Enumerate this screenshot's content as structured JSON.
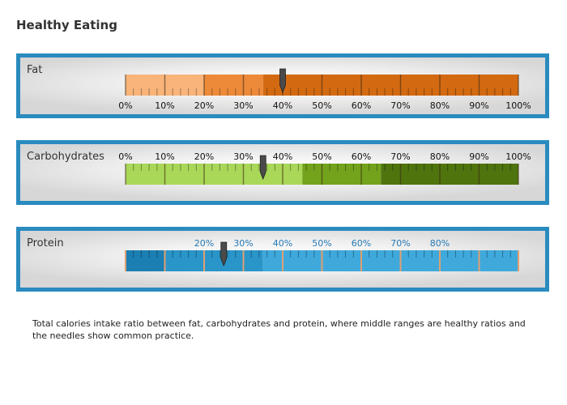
{
  "title": "Healthy Eating",
  "description": "Total calories intake ratio between fat, carbohydrates and protein, where middle ranges are healthy ratios and the needles show common practice.",
  "gauges": [
    {
      "id": "fat",
      "label": "Fat",
      "scale_position": "bottom",
      "ticks": [
        "0%",
        "10%",
        "20%",
        "30%",
        "40%",
        "50%",
        "60%",
        "70%",
        "80%",
        "90%",
        "100%"
      ],
      "tick_values": [
        0,
        10,
        20,
        30,
        40,
        50,
        60,
        70,
        80,
        90,
        100
      ],
      "label_color": "#111111",
      "ranges": [
        {
          "from": 0,
          "to": 20,
          "color": "#f9b47a"
        },
        {
          "from": 20,
          "to": 35,
          "color": "#ed8a3a"
        },
        {
          "from": 35,
          "to": 100,
          "color": "#d36a12"
        }
      ],
      "needle_value": 40
    },
    {
      "id": "carbohydrates",
      "label": "Carbohydrates",
      "scale_position": "top",
      "ticks": [
        "0%",
        "10%",
        "20%",
        "30%",
        "40%",
        "50%",
        "60%",
        "70%",
        "80%",
        "90%",
        "100%"
      ],
      "tick_values": [
        0,
        10,
        20,
        30,
        40,
        50,
        60,
        70,
        80,
        90,
        100
      ],
      "label_color": "#111111",
      "ranges": [
        {
          "from": 0,
          "to": 45,
          "color": "#a9d758"
        },
        {
          "from": 45,
          "to": 65,
          "color": "#73a31c"
        },
        {
          "from": 65,
          "to": 100,
          "color": "#4f740e"
        }
      ],
      "needle_value": 35
    },
    {
      "id": "protein",
      "label": "Protein",
      "scale_position": "top",
      "ticks": [
        "20%",
        "30%",
        "40%",
        "50%",
        "60%",
        "70%",
        "80%"
      ],
      "tick_values": [
        20,
        30,
        40,
        50,
        60,
        70,
        80
      ],
      "label_color": "#2479b5",
      "ranges": [
        {
          "from": 0,
          "to": 10,
          "color": "#1b7fb3"
        },
        {
          "from": 10,
          "to": 35,
          "color": "#2a95c9"
        },
        {
          "from": 35,
          "to": 100,
          "color": "#3fa9dc"
        }
      ],
      "needle_value": 25
    }
  ]
}
